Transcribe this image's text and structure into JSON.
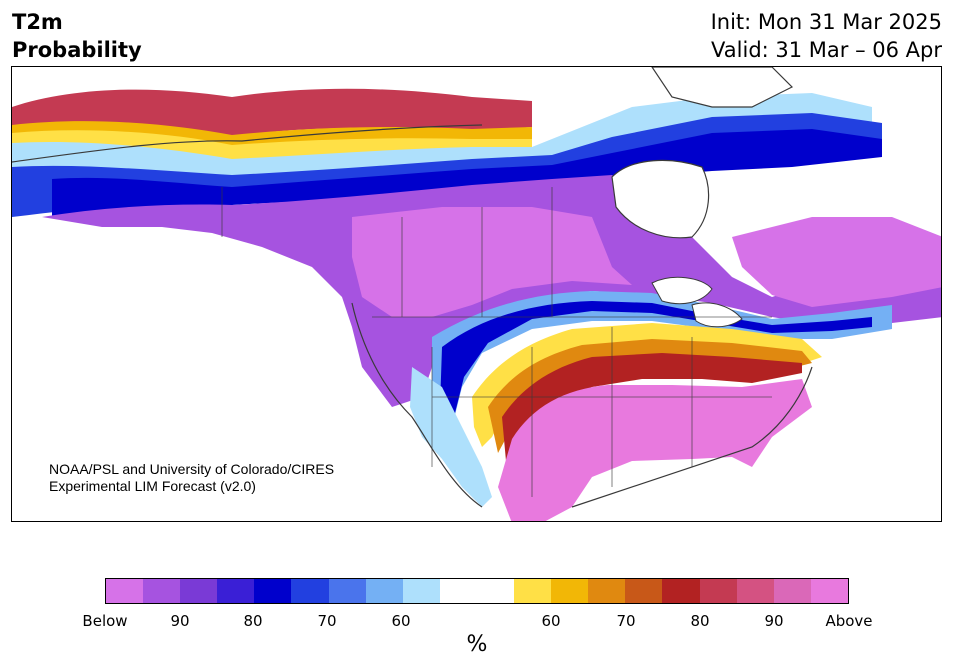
{
  "header": {
    "variable": "T2m",
    "product": "Probability",
    "init": "Init: Mon 31 Mar 2025",
    "valid": "Valid: 31 Mar – 06 Apr"
  },
  "credit": {
    "line1": "NOAA/PSL and University of Colorado/CIRES",
    "line2": "Experimental LIM Forecast (v2.0)"
  },
  "colorbar": {
    "colors": [
      "#d672e8",
      "#a653e0",
      "#7a3ad6",
      "#3a1fd6",
      "#0000cc",
      "#2240e0",
      "#4a74ec",
      "#74b0f4",
      "#aee0fc",
      "#ffffff",
      "#ffffff",
      "#ffe046",
      "#f2b706",
      "#e08910",
      "#c85818",
      "#b22222",
      "#c43a52",
      "#d45282",
      "#da68b8",
      "#e879de"
    ],
    "labels": [
      "Below",
      "90",
      "80",
      "70",
      "60",
      "60",
      "70",
      "80",
      "90",
      "Above"
    ],
    "unit": "%"
  },
  "map": {
    "palette": {
      "below_strong": "#d672e8",
      "below_mid": "#a653e0",
      "below_deep": "#3a1fd6",
      "blue": "#0000cc",
      "light_blue": "#74b0f4",
      "pale_blue": "#aee0fc",
      "yellow": "#ffe046",
      "orange": "#e08910",
      "red": "#b22222",
      "above_mid": "#d45282",
      "above_strong": "#e879de",
      "land_outline": "#3a3a3a"
    }
  }
}
